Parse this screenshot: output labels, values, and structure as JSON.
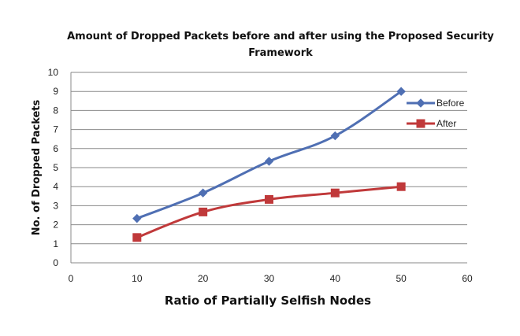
{
  "chart_data": {
    "type": "line",
    "title": "Amount of Dropped Packets before and after using the Proposed Security",
    "title_line2": "Framework",
    "xlabel": "Ratio of Partially Selfish Nodes",
    "ylabel": "No. of Dropped Packets",
    "xlim": [
      0,
      60
    ],
    "ylim": [
      0,
      10
    ],
    "x_ticks": [
      0,
      10,
      20,
      30,
      40,
      50,
      60
    ],
    "y_ticks": [
      0,
      1,
      2,
      3,
      4,
      5,
      6,
      7,
      8,
      9,
      10
    ],
    "grid": true,
    "legend_position": "right",
    "x": [
      10,
      20,
      30,
      40,
      50
    ],
    "series": [
      {
        "name": "Before",
        "values": [
          2.33,
          3.67,
          5.33,
          6.67,
          9.0
        ],
        "color": "#4F6FB3",
        "marker": "diamond"
      },
      {
        "name": "After",
        "values": [
          1.33,
          2.67,
          3.33,
          3.67,
          4.0
        ],
        "color": "#C0393A",
        "marker": "square"
      }
    ]
  }
}
